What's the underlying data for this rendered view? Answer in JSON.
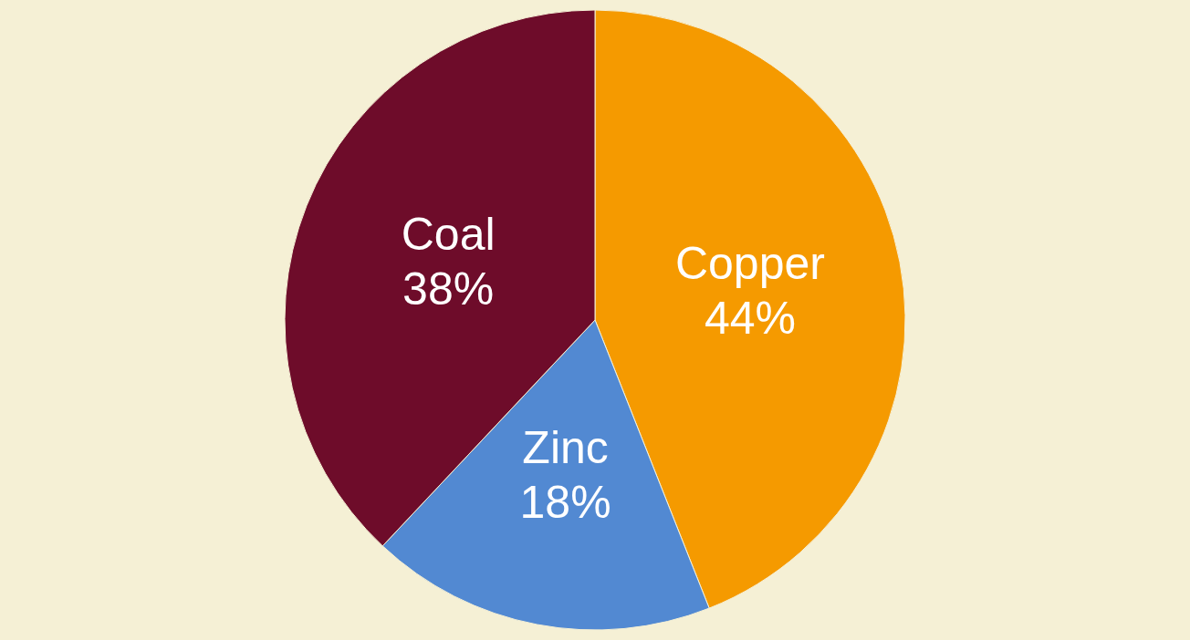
{
  "chart_data": {
    "type": "pie",
    "categories": [
      "Copper",
      "Zinc",
      "Coal"
    ],
    "values": [
      44,
      18,
      38
    ],
    "value_labels": [
      "44%",
      "18%",
      "38%"
    ],
    "colors": [
      "#f59a00",
      "#5289d2",
      "#6e0c2a"
    ],
    "legend": false
  }
}
